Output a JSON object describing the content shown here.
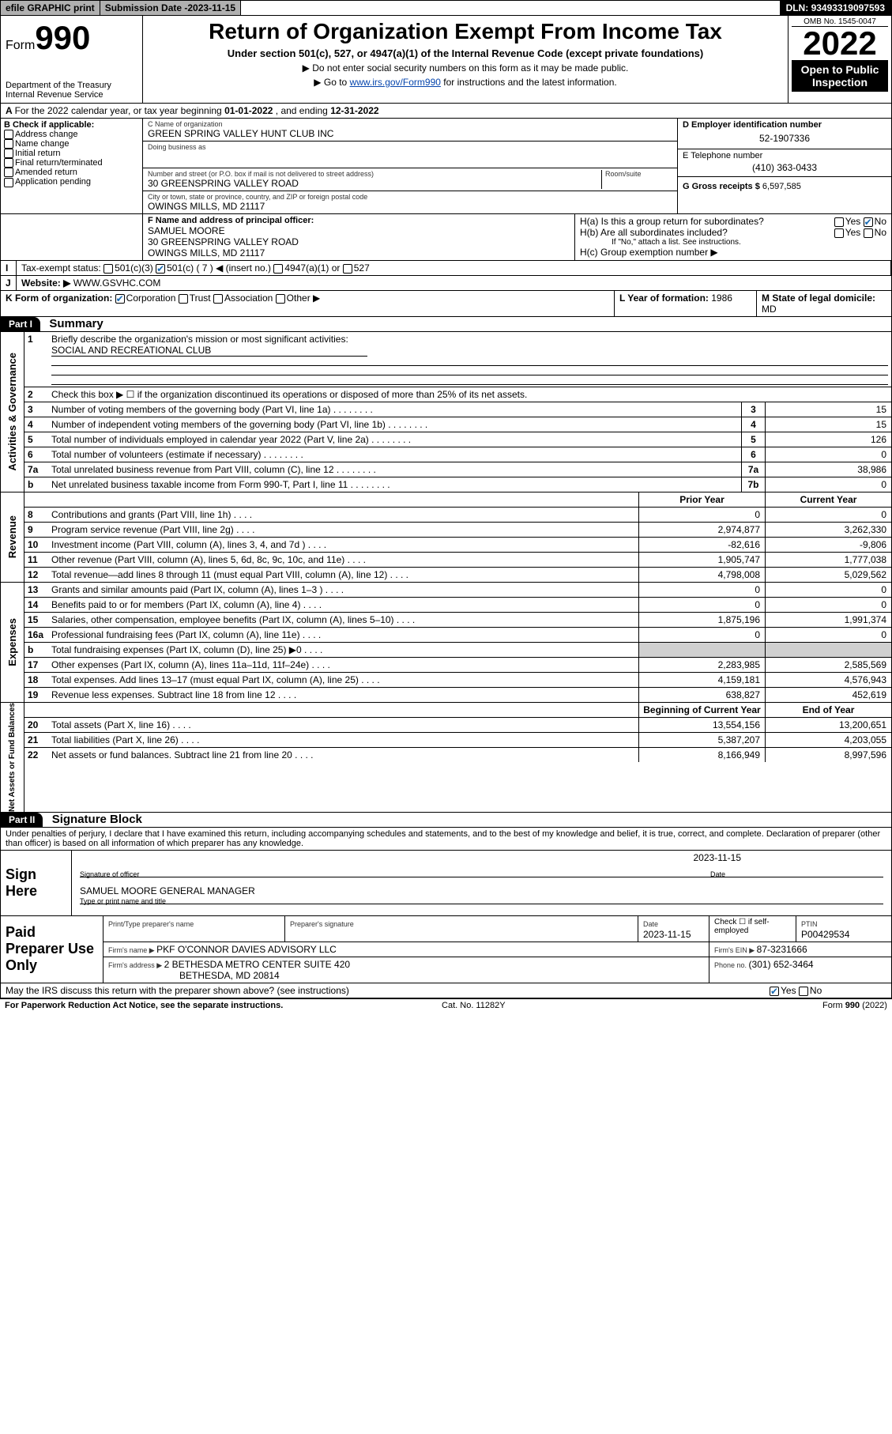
{
  "topbar": {
    "efile": "efile GRAPHIC print",
    "subdate_lbl": "Submission Date - ",
    "subdate": "2023-11-15",
    "dln_lbl": "DLN: ",
    "dln": "93493319097593"
  },
  "header": {
    "form_lbl": "Form",
    "form_num": "990",
    "dept": "Department of the Treasury",
    "irs": "Internal Revenue Service",
    "title": "Return of Organization Exempt From Income Tax",
    "sub1": "Under section 501(c), 527, or 4947(a)(1) of the Internal Revenue Code (except private foundations)",
    "sub2": "Do not enter social security numbers on this form as it may be made public.",
    "sub3_pre": "Go to ",
    "sub3_link": "www.irs.gov/Form990",
    "sub3_post": " for instructions and the latest information.",
    "omb": "OMB No. 1545-0047",
    "year": "2022",
    "open": "Open to Public Inspection"
  },
  "A": {
    "text_pre": "For the 2022 calendar year, or tax year beginning ",
    "begin": "01-01-2022",
    "mid": " , and ending ",
    "end": "12-31-2022"
  },
  "B": {
    "hdr": "B Check if applicable:",
    "items": [
      "Address change",
      "Name change",
      "Initial return",
      "Final return/terminated",
      "Amended return",
      "Application pending"
    ]
  },
  "C": {
    "name_lbl": "C Name of organization",
    "name": "GREEN SPRING VALLEY HUNT CLUB INC",
    "dba_lbl": "Doing business as",
    "addr_lbl": "Number and street (or P.O. box if mail is not delivered to street address)",
    "suite_lbl": "Room/suite",
    "addr": "30 GREENSPRING VALLEY ROAD",
    "city_lbl": "City or town, state or province, country, and ZIP or foreign postal code",
    "city": "OWINGS MILLS, MD  21117"
  },
  "D": {
    "lbl": "D Employer identification number",
    "val": "52-1907336"
  },
  "E": {
    "lbl": "E Telephone number",
    "val": "(410) 363-0433"
  },
  "G": {
    "lbl": "G Gross receipts $ ",
    "val": "6,597,585"
  },
  "F": {
    "lbl": "F Name and address of principal officer:",
    "name": "SAMUEL MOORE",
    "l1": "30 GREENSPRING VALLEY ROAD",
    "l2": "OWINGS MILLS, MD  21117"
  },
  "H": {
    "a": "H(a)  Is this a group return for subordinates?",
    "b": "H(b)  Are all subordinates included?",
    "bnote": "If \"No,\" attach a list. See instructions.",
    "c": "H(c)  Group exemption number ▶",
    "yes": "Yes",
    "no": "No"
  },
  "I": {
    "lbl": "Tax-exempt status:",
    "o1": "501(c)(3)",
    "o2": "501(c) ( 7 ) ◀ (insert no.)",
    "o3": "4947(a)(1) or",
    "o4": "527"
  },
  "J": {
    "lbl": "Website: ▶",
    "val": "WWW.GSVHC.COM"
  },
  "K": {
    "lbl": "K Form of organization:",
    "corp": "Corporation",
    "trust": "Trust",
    "assoc": "Association",
    "other": "Other ▶"
  },
  "L": {
    "lbl": "L Year of formation: ",
    "val": "1986"
  },
  "M": {
    "lbl": "M State of legal domicile:",
    "val": "MD"
  },
  "partI": {
    "hdr": "Part I",
    "title": "Summary"
  },
  "p1": {
    "l1": "Briefly describe the organization's mission or most significant activities:",
    "l1v": "SOCIAL AND RECREATIONAL CLUB",
    "l2": "Check this box ▶ ☐  if the organization discontinued its operations or disposed of more than 25% of its net assets.",
    "rows_gov": [
      {
        "n": "3",
        "d": "Number of voting members of the governing body (Part VI, line 1a)",
        "b": "3",
        "v": "15"
      },
      {
        "n": "4",
        "d": "Number of independent voting members of the governing body (Part VI, line 1b)",
        "b": "4",
        "v": "15"
      },
      {
        "n": "5",
        "d": "Total number of individuals employed in calendar year 2022 (Part V, line 2a)",
        "b": "5",
        "v": "126"
      },
      {
        "n": "6",
        "d": "Total number of volunteers (estimate if necessary)",
        "b": "6",
        "v": "0"
      },
      {
        "n": "7a",
        "d": "Total unrelated business revenue from Part VIII, column (C), line 12",
        "b": "7a",
        "v": "38,986"
      },
      {
        "n": "b",
        "d": "Net unrelated business taxable income from Form 990-T, Part I, line 11",
        "b": "7b",
        "v": "0"
      }
    ],
    "prior": "Prior Year",
    "current": "Current Year",
    "rows_rev": [
      {
        "n": "8",
        "d": "Contributions and grants (Part VIII, line 1h)",
        "p": "0",
        "c": "0"
      },
      {
        "n": "9",
        "d": "Program service revenue (Part VIII, line 2g)",
        "p": "2,974,877",
        "c": "3,262,330"
      },
      {
        "n": "10",
        "d": "Investment income (Part VIII, column (A), lines 3, 4, and 7d )",
        "p": "-82,616",
        "c": "-9,806"
      },
      {
        "n": "11",
        "d": "Other revenue (Part VIII, column (A), lines 5, 6d, 8c, 9c, 10c, and 11e)",
        "p": "1,905,747",
        "c": "1,777,038"
      },
      {
        "n": "12",
        "d": "Total revenue—add lines 8 through 11 (must equal Part VIII, column (A), line 12)",
        "p": "4,798,008",
        "c": "5,029,562"
      }
    ],
    "rows_exp": [
      {
        "n": "13",
        "d": "Grants and similar amounts paid (Part IX, column (A), lines 1–3 )",
        "p": "0",
        "c": "0"
      },
      {
        "n": "14",
        "d": "Benefits paid to or for members (Part IX, column (A), line 4)",
        "p": "0",
        "c": "0"
      },
      {
        "n": "15",
        "d": "Salaries, other compensation, employee benefits (Part IX, column (A), lines 5–10)",
        "p": "1,875,196",
        "c": "1,991,374"
      },
      {
        "n": "16a",
        "d": "Professional fundraising fees (Part IX, column (A), line 11e)",
        "p": "0",
        "c": "0"
      },
      {
        "n": "b",
        "d": "Total fundraising expenses (Part IX, column (D), line 25) ▶0",
        "p": "",
        "c": "",
        "shade": true
      },
      {
        "n": "17",
        "d": "Other expenses (Part IX, column (A), lines 11a–11d, 11f–24e)",
        "p": "2,283,985",
        "c": "2,585,569"
      },
      {
        "n": "18",
        "d": "Total expenses. Add lines 13–17 (must equal Part IX, column (A), line 25)",
        "p": "4,159,181",
        "c": "4,576,943"
      },
      {
        "n": "19",
        "d": "Revenue less expenses. Subtract line 18 from line 12",
        "p": "638,827",
        "c": "452,619"
      }
    ],
    "begcur": "Beginning of Current Year",
    "endyr": "End of Year",
    "rows_net": [
      {
        "n": "20",
        "d": "Total assets (Part X, line 16)",
        "p": "13,554,156",
        "c": "13,200,651"
      },
      {
        "n": "21",
        "d": "Total liabilities (Part X, line 26)",
        "p": "5,387,207",
        "c": "4,203,055"
      },
      {
        "n": "22",
        "d": "Net assets or fund balances. Subtract line 21 from line 20",
        "p": "8,166,949",
        "c": "8,997,596"
      }
    ],
    "side_gov": "Activities & Governance",
    "side_rev": "Revenue",
    "side_exp": "Expenses",
    "side_net": "Net Assets or Fund Balances"
  },
  "partII": {
    "hdr": "Part II",
    "title": "Signature Block"
  },
  "penalties": "Under penalties of perjury, I declare that I have examined this return, including accompanying schedules and statements, and to the best of my knowledge and belief, it is true, correct, and complete. Declaration of preparer (other than officer) is based on all information of which preparer has any knowledge.",
  "sign": {
    "here": "Sign Here",
    "sigoff": "Signature of officer",
    "date": "Date",
    "datev": "2023-11-15",
    "name": "SAMUEL MOORE  GENERAL MANAGER",
    "name_lbl": "Type or print name and title"
  },
  "paid": {
    "title": "Paid Preparer Use Only",
    "c1": "Print/Type preparer's name",
    "c2": "Preparer's signature",
    "c3": "Date",
    "c3v": "2023-11-15",
    "c4": "Check ☐ if self-employed",
    "c5": "PTIN",
    "c5v": "P00429534",
    "firm_lbl": "Firm's name    ▶ ",
    "firm": "PKF O'CONNOR DAVIES ADVISORY LLC",
    "ein_lbl": "Firm's EIN ▶ ",
    "ein": "87-3231666",
    "addr_lbl": "Firm's address ▶ ",
    "addr": "2 BETHESDA METRO CENTER SUITE 420",
    "addr2": "BETHESDA, MD  20814",
    "ph_lbl": "Phone no. ",
    "ph": "(301) 652-3464"
  },
  "discuss": {
    "q": "May the IRS discuss this return with the preparer shown above? (see instructions)",
    "yes": "Yes",
    "no": "No"
  },
  "footer": {
    "l": "For Paperwork Reduction Act Notice, see the separate instructions.",
    "m": "Cat. No. 11282Y",
    "r": "Form 990 (2022)"
  }
}
